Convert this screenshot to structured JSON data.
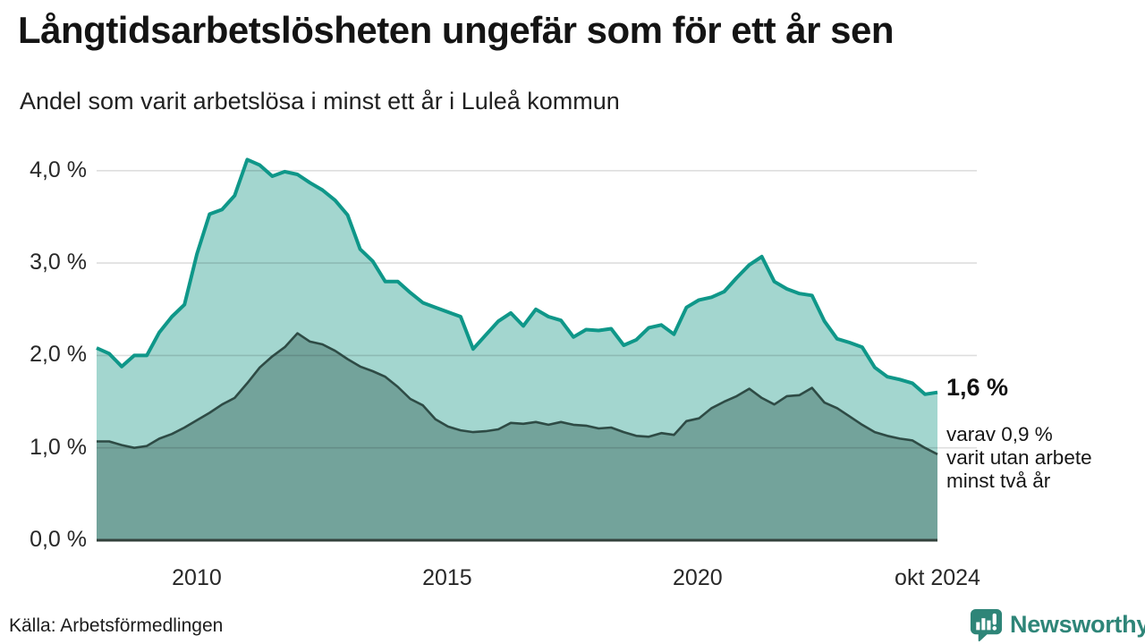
{
  "header": {
    "title": "Långtidsarbetslösheten ungefär som för ett år sen",
    "subtitle": "Andel som varit arbetslösa i minst ett år i Luleå kommun"
  },
  "annotation": {
    "value_label": "1,6 %",
    "detail_lines": [
      "varav 0,9 %",
      "varit utan arbete",
      "minst två år"
    ]
  },
  "footer": {
    "source": "Källa: Arbetsförmedlingen",
    "brand": "Newsworthy"
  },
  "colors": {
    "line_1yr": "#0f9789",
    "fill_1yr": "#a3d6cf",
    "line_2yr": "#2e4b45",
    "fill_2yr": "#73a39b",
    "gridline": "#dcdcdc",
    "axis_baseline": "#33423d",
    "brand_teal": "#2e8578",
    "text": "#171717"
  },
  "chart_data": {
    "type": "area",
    "title": "Långtidsarbetslösheten ungefär som för ett år sen",
    "subtitle": "Andel som varit arbetslösa i minst ett år i Luleå kommun",
    "x_range": [
      2008.0,
      2024.79
    ],
    "x_note": "quarterly samples, jan 2008 – okt 2024",
    "ylim": [
      0,
      4.25
    ],
    "grid": "horizontal",
    "legend": "none",
    "yticks": [
      {
        "value": 0,
        "label": "0,0 %"
      },
      {
        "value": 1,
        "label": "1,0 %"
      },
      {
        "value": 2,
        "label": "2,0 %"
      },
      {
        "value": 3,
        "label": "3,0 %"
      },
      {
        "value": 4,
        "label": "4,0 %"
      }
    ],
    "xticks": [
      {
        "year": 2010,
        "label": "2010"
      },
      {
        "year": 2015,
        "label": "2015"
      },
      {
        "year": 2020,
        "label": "2020"
      },
      {
        "year": 2024.79,
        "label": "okt 2024"
      }
    ],
    "series": [
      {
        "name": "minst ett år",
        "final_label": "1,6 %",
        "line_color": "#0f9789",
        "fill_color": "#a3d6cf",
        "line_width": 4,
        "values": [
          2.08,
          2.02,
          1.88,
          2.0,
          2.0,
          2.25,
          2.42,
          2.55,
          3.1,
          3.53,
          3.58,
          3.73,
          4.12,
          4.06,
          3.94,
          3.99,
          3.96,
          3.87,
          3.79,
          3.68,
          3.52,
          3.15,
          3.02,
          2.8,
          2.8,
          2.68,
          2.57,
          2.52,
          2.47,
          2.42,
          2.07,
          2.22,
          2.37,
          2.46,
          2.32,
          2.5,
          2.42,
          2.38,
          2.2,
          2.28,
          2.27,
          2.29,
          2.11,
          2.17,
          2.3,
          2.33,
          2.23,
          2.52,
          2.6,
          2.63,
          2.69,
          2.84,
          2.98,
          3.07,
          2.8,
          2.72,
          2.67,
          2.65,
          2.37,
          2.18,
          2.14,
          2.09,
          1.87,
          1.77,
          1.74,
          1.7,
          1.58,
          1.6
        ]
      },
      {
        "name": "minst två år",
        "final_label": "0,9 %",
        "line_color": "#2e4b45",
        "fill_color": "#73a39b",
        "line_width": 2.6,
        "values": [
          1.07,
          1.07,
          1.03,
          1.0,
          1.02,
          1.1,
          1.15,
          1.22,
          1.3,
          1.38,
          1.47,
          1.54,
          1.7,
          1.87,
          1.99,
          2.09,
          2.24,
          2.15,
          2.12,
          2.05,
          1.96,
          1.88,
          1.83,
          1.77,
          1.66,
          1.53,
          1.46,
          1.31,
          1.23,
          1.19,
          1.17,
          1.18,
          1.2,
          1.27,
          1.26,
          1.28,
          1.25,
          1.28,
          1.25,
          1.24,
          1.21,
          1.22,
          1.17,
          1.13,
          1.12,
          1.16,
          1.14,
          1.29,
          1.32,
          1.43,
          1.5,
          1.56,
          1.64,
          1.54,
          1.47,
          1.56,
          1.57,
          1.65,
          1.49,
          1.43,
          1.34,
          1.25,
          1.17,
          1.13,
          1.1,
          1.08,
          1.0,
          0.93
        ]
      }
    ]
  }
}
